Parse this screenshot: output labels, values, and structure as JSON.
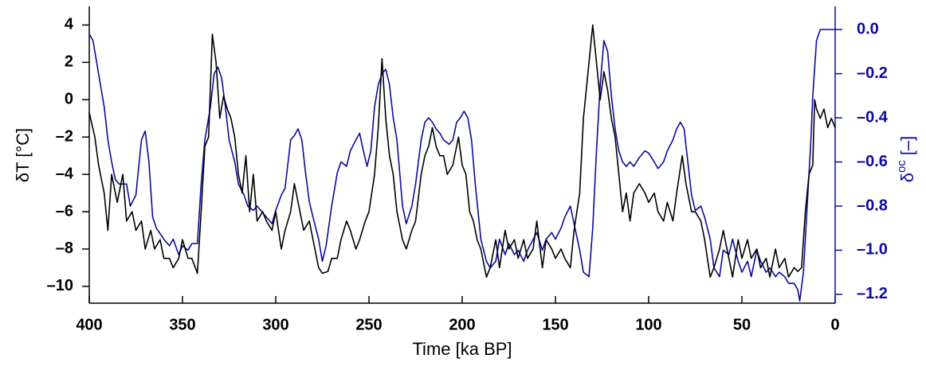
{
  "chart_data": {
    "type": "line",
    "xlabel": "Time [ka BP]",
    "ylabel": "δT [°C]",
    "y2label": {
      "symbol": "δ",
      "superscript": "oc",
      "unit": "[–]"
    },
    "xlim": [
      400,
      0
    ],
    "xticks": [
      400,
      350,
      300,
      250,
      200,
      150,
      100,
      50,
      0
    ],
    "ylim": [
      -10.9,
      5
    ],
    "yticks": [
      {
        "value": -10,
        "label": "–10"
      },
      {
        "value": -8,
        "label": "–8"
      },
      {
        "value": -6,
        "label": "–6"
      },
      {
        "value": -4,
        "label": "–4"
      },
      {
        "value": -2,
        "label": "–2"
      },
      0,
      2,
      4
    ],
    "y2lim": [
      -1.24,
      0.105
    ],
    "y2ticks": [
      {
        "value": -1.2,
        "label": "–1.2"
      },
      {
        "value": -1.0,
        "label": "–1.0"
      },
      {
        "value": -0.8,
        "label": "–0.8"
      },
      {
        "value": -0.6,
        "label": "–0.6"
      },
      {
        "value": -0.4,
        "label": "–0.4"
      },
      {
        "value": -0.2,
        "label": "–0.2"
      },
      {
        "value": 0,
        "label": "0.0"
      }
    ],
    "series": [
      {
        "color": "#000000",
        "x": [
          400,
          397,
          395,
          392,
          390,
          388,
          385,
          382,
          380,
          377,
          375,
          372,
          370,
          367,
          365,
          362,
          360,
          357,
          355,
          352,
          350,
          347,
          345,
          342,
          340,
          338,
          336,
          334,
          332,
          330,
          328,
          326,
          324,
          322,
          320,
          318,
          316,
          314,
          312,
          310,
          307,
          305,
          302,
          300,
          297,
          295,
          292,
          290,
          287,
          285,
          282,
          280,
          277,
          275,
          272,
          270,
          267,
          265,
          262,
          260,
          257,
          255,
          252,
          250,
          247,
          245,
          243,
          241,
          239,
          237,
          235,
          232,
          230,
          227,
          225,
          222,
          220,
          218,
          216,
          214,
          212,
          210,
          208,
          205,
          202,
          200,
          198,
          196,
          194,
          192,
          190,
          187,
          185,
          182,
          180,
          177,
          175,
          172,
          170,
          167,
          165,
          162,
          160,
          157,
          155,
          152,
          150,
          147,
          145,
          142,
          140,
          137,
          135,
          132,
          130,
          128,
          126,
          124,
          122,
          120,
          118,
          116,
          114,
          112,
          110,
          108,
          105,
          102,
          100,
          97,
          95,
          92,
          90,
          87,
          85,
          82,
          80,
          77,
          75,
          72,
          70,
          67,
          65,
          62,
          60,
          57,
          55,
          52,
          50,
          47,
          45,
          42,
          40,
          37,
          35,
          32,
          30,
          27,
          25,
          22,
          20,
          18,
          16,
          14,
          12,
          11,
          10,
          8,
          6,
          4,
          2,
          0
        ],
        "values": [
          -0.7,
          -2,
          -3.5,
          -5,
          -7,
          -4,
          -5.5,
          -4,
          -6.5,
          -6,
          -7,
          -6.5,
          -8,
          -7,
          -8,
          -7.5,
          -8.5,
          -8.5,
          -9,
          -8.5,
          -7.5,
          -8.5,
          -8.5,
          -9.3,
          -6,
          -2.5,
          -2,
          3.5,
          2,
          -1,
          0.2,
          -0.5,
          -1,
          -2,
          -4,
          -5,
          -3,
          -6,
          -4,
          -6.5,
          -6,
          -6.5,
          -7,
          -6,
          -8,
          -7,
          -6,
          -4.5,
          -6,
          -7,
          -6.5,
          -7.5,
          -9,
          -9.3,
          -9.2,
          -8.5,
          -8.5,
          -7.5,
          -6.5,
          -7,
          -8,
          -7.5,
          -6.5,
          -6,
          -4,
          -1.5,
          2.2,
          -1,
          -3,
          -4,
          -6,
          -7.5,
          -8,
          -7,
          -6.5,
          -4,
          -3,
          -2.5,
          -1.5,
          -2.5,
          -3,
          -3,
          -4,
          -3.5,
          -2,
          -3.5,
          -4,
          -6,
          -6.5,
          -7.5,
          -8,
          -9.5,
          -9,
          -7.5,
          -9,
          -7,
          -8,
          -7.5,
          -8.5,
          -7.5,
          -8.5,
          -8,
          -6.5,
          -9,
          -7.5,
          -8,
          -8.5,
          -8,
          -8.5,
          -9,
          -7,
          -5,
          -1,
          2,
          4,
          2,
          0,
          1.5,
          0.5,
          -1,
          -2,
          -4,
          -6,
          -5,
          -6.5,
          -5,
          -4.5,
          -5,
          -5.5,
          -5,
          -6,
          -6.5,
          -5.5,
          -6.5,
          -5,
          -3,
          -4.5,
          -6,
          -6,
          -6.5,
          -7.5,
          -9.5,
          -9,
          -8,
          -7,
          -8.5,
          -9.5,
          -7.5,
          -8.5,
          -7.5,
          -8.5,
          -8,
          -9,
          -8.5,
          -9.5,
          -8,
          -9,
          -8.5,
          -9.5,
          -9,
          -9.2,
          -9,
          -6,
          -4,
          -3.5,
          0,
          -0.5,
          -1,
          -0.5,
          -1.5,
          -1,
          -1.5
        ]
      },
      {
        "color": "#0a0aa0",
        "axis": "y2",
        "x": [
          400,
          398,
          395,
          392,
          390,
          388,
          386,
          384,
          380,
          378,
          375,
          372,
          370,
          368,
          366,
          364,
          360,
          357,
          355,
          352,
          350,
          347,
          345,
          342,
          340,
          338,
          335,
          333,
          331,
          329,
          327,
          325,
          322,
          320,
          317,
          315,
          312,
          310,
          305,
          302,
          300,
          297,
          295,
          292,
          290,
          288,
          286,
          284,
          282,
          280,
          277,
          275,
          273,
          270,
          267,
          265,
          262,
          260,
          257,
          255,
          253,
          251,
          249,
          247,
          245,
          243,
          241,
          239,
          237,
          235,
          232,
          230,
          227,
          225,
          222,
          220,
          218,
          216,
          214,
          212,
          210,
          207,
          205,
          203,
          201,
          199,
          197,
          195,
          193,
          190,
          187,
          185,
          182,
          180,
          177,
          175,
          172,
          170,
          167,
          165,
          160,
          157,
          155,
          152,
          150,
          147,
          145,
          142,
          140,
          137,
          135,
          132,
          130,
          128,
          126,
          124,
          122,
          120,
          118,
          116,
          114,
          112,
          110,
          108,
          105,
          102,
          100,
          97,
          95,
          92,
          90,
          87,
          85,
          83,
          81,
          79,
          77,
          75,
          72,
          70,
          67,
          65,
          62,
          60,
          57,
          55,
          52,
          50,
          47,
          45,
          42,
          40,
          37,
          35,
          32,
          30,
          27,
          25,
          22,
          20,
          19,
          17,
          15,
          13,
          12,
          10,
          8,
          6,
          3,
          0
        ],
        "values": [
          -0.02,
          -0.05,
          -0.2,
          -0.35,
          -0.5,
          -0.6,
          -0.68,
          -0.7,
          -0.7,
          -0.8,
          -0.75,
          -0.5,
          -0.46,
          -0.6,
          -0.85,
          -0.9,
          -0.95,
          -0.98,
          -0.95,
          -1.02,
          -0.98,
          -1.0,
          -0.97,
          -0.97,
          -0.7,
          -0.5,
          -0.35,
          -0.2,
          -0.17,
          -0.22,
          -0.35,
          -0.5,
          -0.6,
          -0.7,
          -0.75,
          -0.8,
          -0.82,
          -0.8,
          -0.85,
          -0.88,
          -0.82,
          -0.75,
          -0.72,
          -0.5,
          -0.48,
          -0.45,
          -0.5,
          -0.65,
          -0.78,
          -0.85,
          -0.95,
          -1.05,
          -0.98,
          -0.8,
          -0.65,
          -0.6,
          -0.62,
          -0.55,
          -0.5,
          -0.47,
          -0.55,
          -0.62,
          -0.55,
          -0.35,
          -0.25,
          -0.2,
          -0.18,
          -0.25,
          -0.4,
          -0.5,
          -0.8,
          -0.88,
          -0.8,
          -0.7,
          -0.5,
          -0.42,
          -0.4,
          -0.42,
          -0.45,
          -0.47,
          -0.5,
          -0.52,
          -0.5,
          -0.42,
          -0.4,
          -0.37,
          -0.4,
          -0.5,
          -0.7,
          -0.95,
          -1.05,
          -1.08,
          -1.05,
          -0.95,
          -1.02,
          -0.97,
          -1.02,
          -1.0,
          -1.05,
          -1.0,
          -0.92,
          -1.0,
          -0.95,
          -0.92,
          -0.95,
          -0.9,
          -0.85,
          -0.8,
          -0.88,
          -1.0,
          -1.1,
          -1.12,
          -0.9,
          -0.55,
          -0.25,
          -0.05,
          -0.1,
          -0.3,
          -0.45,
          -0.55,
          -0.6,
          -0.62,
          -0.6,
          -0.62,
          -0.58,
          -0.55,
          -0.56,
          -0.6,
          -0.63,
          -0.6,
          -0.55,
          -0.5,
          -0.45,
          -0.42,
          -0.45,
          -0.6,
          -0.75,
          -0.82,
          -0.8,
          -0.85,
          -0.95,
          -1.08,
          -1.12,
          -1.0,
          -1.02,
          -0.95,
          -1.05,
          -1.1,
          -1.05,
          -1.12,
          -1.0,
          -1.05,
          -1.1,
          -1.08,
          -1.12,
          -1.1,
          -1.12,
          -1.15,
          -1.15,
          -1.18,
          -1.23,
          -1.1,
          -0.8,
          -0.5,
          -0.3,
          -0.05,
          0.0,
          0.0,
          0.0,
          0.0
        ]
      }
    ]
  }
}
